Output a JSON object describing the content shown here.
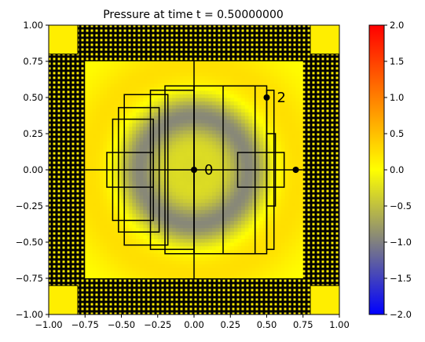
{
  "chart_data": {
    "type": "heatmap",
    "title": "Pressure at time t =      0.50000000",
    "xlabel": "",
    "ylabel": "",
    "xlim": [
      -1.0,
      1.0
    ],
    "ylim": [
      -1.0,
      1.0
    ],
    "x_ticks": [
      "−1.00",
      "−0.75",
      "−0.50",
      "−0.25",
      "0.00",
      "0.25",
      "0.50",
      "0.75",
      "1.00"
    ],
    "y_ticks": [
      "−1.00",
      "−0.75",
      "−0.50",
      "−0.25",
      "0.00",
      "0.25",
      "0.50",
      "0.75",
      "1.00"
    ],
    "x_tick_values": [
      -1.0,
      -0.75,
      -0.5,
      -0.25,
      0.0,
      0.25,
      0.5,
      0.75,
      1.0
    ],
    "y_tick_values": [
      -1.0,
      -0.75,
      -0.5,
      -0.25,
      0.0,
      0.25,
      0.5,
      0.75,
      1.0
    ],
    "colorbar": {
      "range": [
        -2.0,
        2.0
      ],
      "ticks": [
        "−2.0",
        "−1.5",
        "−1.0",
        "−0.5",
        "0.0",
        "0.5",
        "1.0",
        "1.5",
        "2.0"
      ],
      "tick_values": [
        -2.0,
        -1.5,
        -1.0,
        -0.5,
        0.0,
        0.5,
        1.0,
        1.5,
        2.0
      ],
      "colors": [
        {
          "v": -2.0,
          "c": "#0000ff"
        },
        {
          "v": -1.0,
          "c": "#808080"
        },
        {
          "v": 0.0,
          "c": "#ffff00"
        },
        {
          "v": 2.0,
          "c": "#ff0000"
        }
      ]
    },
    "field": {
      "background_value": 0.0,
      "ring_radius": 0.38,
      "ring_width": 0.14,
      "ring_min": -0.9,
      "center_value": -0.3,
      "outer_glow_value": 0.25
    },
    "grid_patches": [
      {
        "x0": -0.6,
        "x1": -0.28,
        "y0": -0.12,
        "y1": 0.12
      },
      {
        "x0": -0.56,
        "x1": -0.28,
        "y0": -0.35,
        "y1": 0.35
      },
      {
        "x0": -0.52,
        "x1": -0.24,
        "y0": -0.43,
        "y1": 0.43
      },
      {
        "x0": -0.48,
        "x1": -0.18,
        "y0": -0.52,
        "y1": 0.52
      },
      {
        "x0": -0.3,
        "x1": 0.0,
        "y0": -0.55,
        "y1": 0.55
      },
      {
        "x0": -0.2,
        "x1": 0.0,
        "y0": -0.58,
        "y1": 0.58
      },
      {
        "x0": 0.0,
        "x1": 0.42,
        "y0": -0.58,
        "y1": 0.58
      },
      {
        "x0": 0.2,
        "x1": 0.5,
        "y0": -0.58,
        "y1": 0.58
      },
      {
        "x0": 0.5,
        "x1": 0.55,
        "y0": -0.55,
        "y1": 0.55
      },
      {
        "x0": 0.5,
        "x1": 0.56,
        "y0": -0.25,
        "y1": 0.25
      },
      {
        "x0": 0.3,
        "x1": 0.62,
        "y0": -0.12,
        "y1": 0.12
      }
    ],
    "markers": [
      {
        "x": 0.0,
        "y": 0.0,
        "label": "0"
      },
      {
        "x": 0.5,
        "y": 0.5,
        "label": "2"
      },
      {
        "x": 0.7,
        "y": 0.0,
        "label": ""
      }
    ]
  }
}
